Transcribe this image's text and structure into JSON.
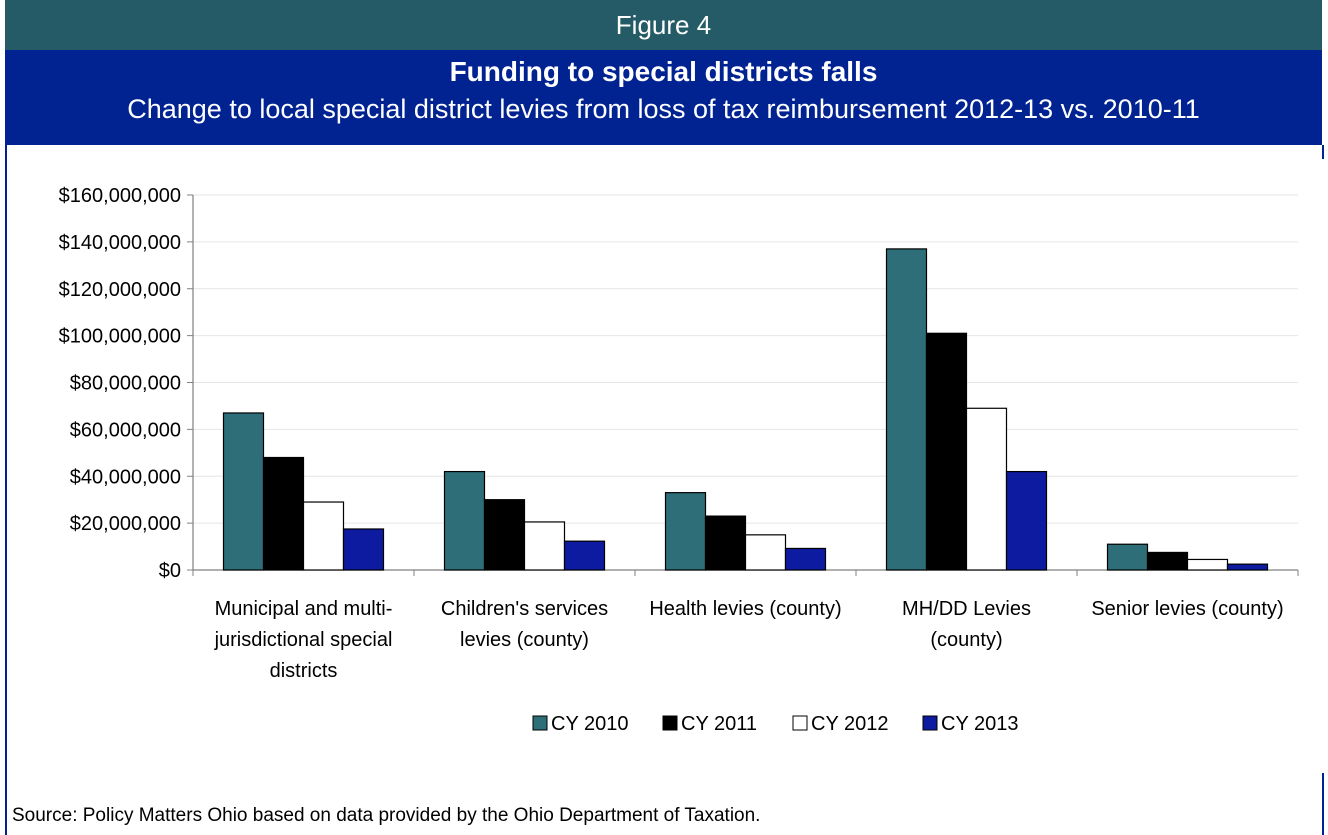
{
  "figure_label": "Figure 4",
  "source_note": "Source: Policy Matters Ohio based on data provided by the Ohio Department of Taxation.",
  "colors": {
    "header_bg": "#245B66",
    "title_bg": "#002391",
    "cy2010": "#2E6E78",
    "cy2011": "#000000",
    "cy2012": "#ffffff",
    "cy2013": "#0D1BA0"
  },
  "chart_data": {
    "type": "bar",
    "title": "Funding to special districts falls",
    "subtitle": "Change to local special district levies from loss of tax reimbursement 2012-13 vs. 2010-11",
    "categories": [
      [
        "Municipal and multi-",
        "jurisdictional special",
        "districts"
      ],
      [
        "Children's services",
        "levies (county)"
      ],
      [
        "Health levies (county)"
      ],
      [
        "MH/DD Levies",
        "(county)"
      ],
      [
        "Senior levies (county)"
      ]
    ],
    "series": [
      {
        "name": "CY 2010",
        "values": [
          67000000,
          42000000,
          33000000,
          137000000,
          11000000
        ]
      },
      {
        "name": "CY 2011",
        "values": [
          48000000,
          30000000,
          23000000,
          101000000,
          7500000
        ]
      },
      {
        "name": "CY 2012",
        "values": [
          29000000,
          20500000,
          15000000,
          69000000,
          4500000
        ]
      },
      {
        "name": "CY 2013",
        "values": [
          17500000,
          12300000,
          9200000,
          42000000,
          2500000
        ]
      }
    ],
    "yticks": [
      "$0",
      "$20,000,000",
      "$40,000,000",
      "$60,000,000",
      "$80,000,000",
      "$100,000,000",
      "$120,000,000",
      "$140,000,000",
      "$160,000,000"
    ],
    "ylim": [
      0,
      160000000
    ],
    "grid": true,
    "legend": "bottom-center"
  }
}
